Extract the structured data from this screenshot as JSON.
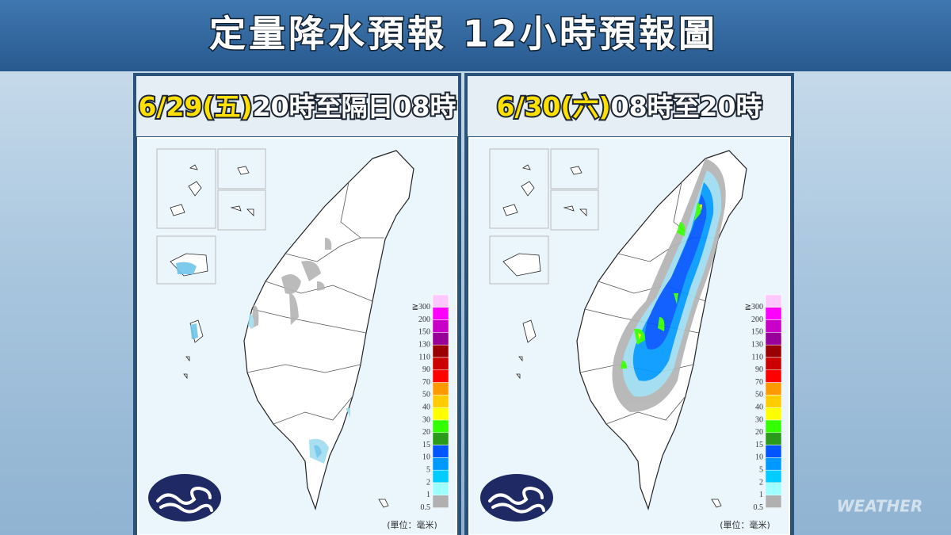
{
  "header": {
    "title": "定量降水預報 12小時預報圖"
  },
  "panels": [
    {
      "date": "6/29(五)",
      "period": "20時至隔日08時"
    },
    {
      "date": "6/30(六)",
      "period": "08時至20時"
    }
  ],
  "legend": {
    "items": [
      {
        "label": "≧300",
        "color": "#fdc9fd"
      },
      {
        "label": "200",
        "color": "#fd01fd"
      },
      {
        "label": "150",
        "color": "#c800c8"
      },
      {
        "label": "130",
        "color": "#990099"
      },
      {
        "label": "110",
        "color": "#9a0000"
      },
      {
        "label": "90",
        "color": "#cc0000"
      },
      {
        "label": "70",
        "color": "#ff0000"
      },
      {
        "label": "50",
        "color": "#ff9900"
      },
      {
        "label": "40",
        "color": "#ffcc00"
      },
      {
        "label": "30",
        "color": "#ffff00"
      },
      {
        "label": "20",
        "color": "#33ff00"
      },
      {
        "label": "15",
        "color": "#2a9a1a"
      },
      {
        "label": "10",
        "color": "#0055ff"
      },
      {
        "label": "5",
        "color": "#0099ff"
      },
      {
        "label": "2",
        "color": "#00ccff"
      },
      {
        "label": "1",
        "color": "#9effff"
      },
      {
        "label": "0.5",
        "color": "#b0b0b0"
      }
    ],
    "unit": "(單位：毫米)"
  },
  "watermark": "WEATHER"
}
